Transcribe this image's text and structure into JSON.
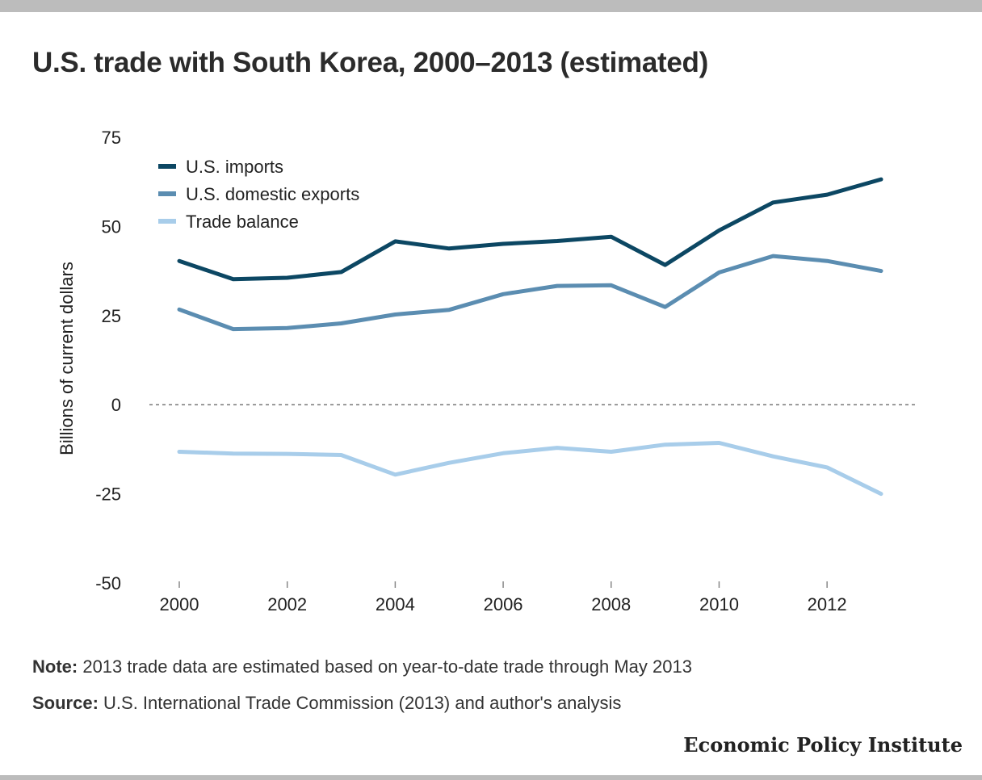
{
  "title": "U.S. trade with South Korea, 2000–2013 (estimated)",
  "note": {
    "label": "Note:",
    "text": " 2013 trade data are estimated based on year-to-date trade through May 2013"
  },
  "source": {
    "label": "Source:",
    "text": " U.S. International Trade Commission (2013) and author's analysis"
  },
  "brand": "Economic Policy Institute",
  "chart_data": {
    "type": "line",
    "title": "U.S. trade with South Korea, 2000–2013 (estimated)",
    "ylabel": "Billions of current dollars",
    "xlabel": "",
    "x": [
      2000,
      2001,
      2002,
      2003,
      2004,
      2005,
      2006,
      2007,
      2008,
      2009,
      2010,
      2011,
      2012,
      2013
    ],
    "xticks": [
      "2000",
      "2002",
      "2004",
      "2006",
      "2008",
      "2010",
      "2012"
    ],
    "xtick_values": [
      2000,
      2002,
      2004,
      2006,
      2008,
      2010,
      2012
    ],
    "yticks": [
      "75",
      "50",
      "25",
      "0",
      "-25",
      "-50"
    ],
    "ytick_values": [
      75,
      50,
      25,
      0,
      -25,
      -50
    ],
    "ylim": [
      -50,
      75
    ],
    "xlim": [
      1999.5,
      2013.7
    ],
    "zero_line": "dashed",
    "legend_position": "top-left",
    "series": [
      {
        "name": "U.S. imports",
        "color": "#0c4763",
        "values": [
          40.3,
          35.2,
          35.6,
          37.2,
          45.8,
          43.8,
          45.1,
          45.9,
          47.1,
          39.2,
          48.9,
          56.7,
          58.9,
          63.2
        ]
      },
      {
        "name": "U.S. domestic exports",
        "color": "#5b8db1",
        "values": [
          26.7,
          21.2,
          21.5,
          22.8,
          25.3,
          26.6,
          31.0,
          33.3,
          33.5,
          27.4,
          37.1,
          41.7,
          40.3,
          37.5
        ]
      },
      {
        "name": "Trade balance",
        "color": "#a8cdea",
        "values": [
          -13.2,
          -13.7,
          -13.8,
          -14.1,
          -19.6,
          -16.3,
          -13.6,
          -12.1,
          -13.2,
          -11.2,
          -10.7,
          -14.5,
          -17.6,
          -25.0
        ]
      }
    ]
  }
}
